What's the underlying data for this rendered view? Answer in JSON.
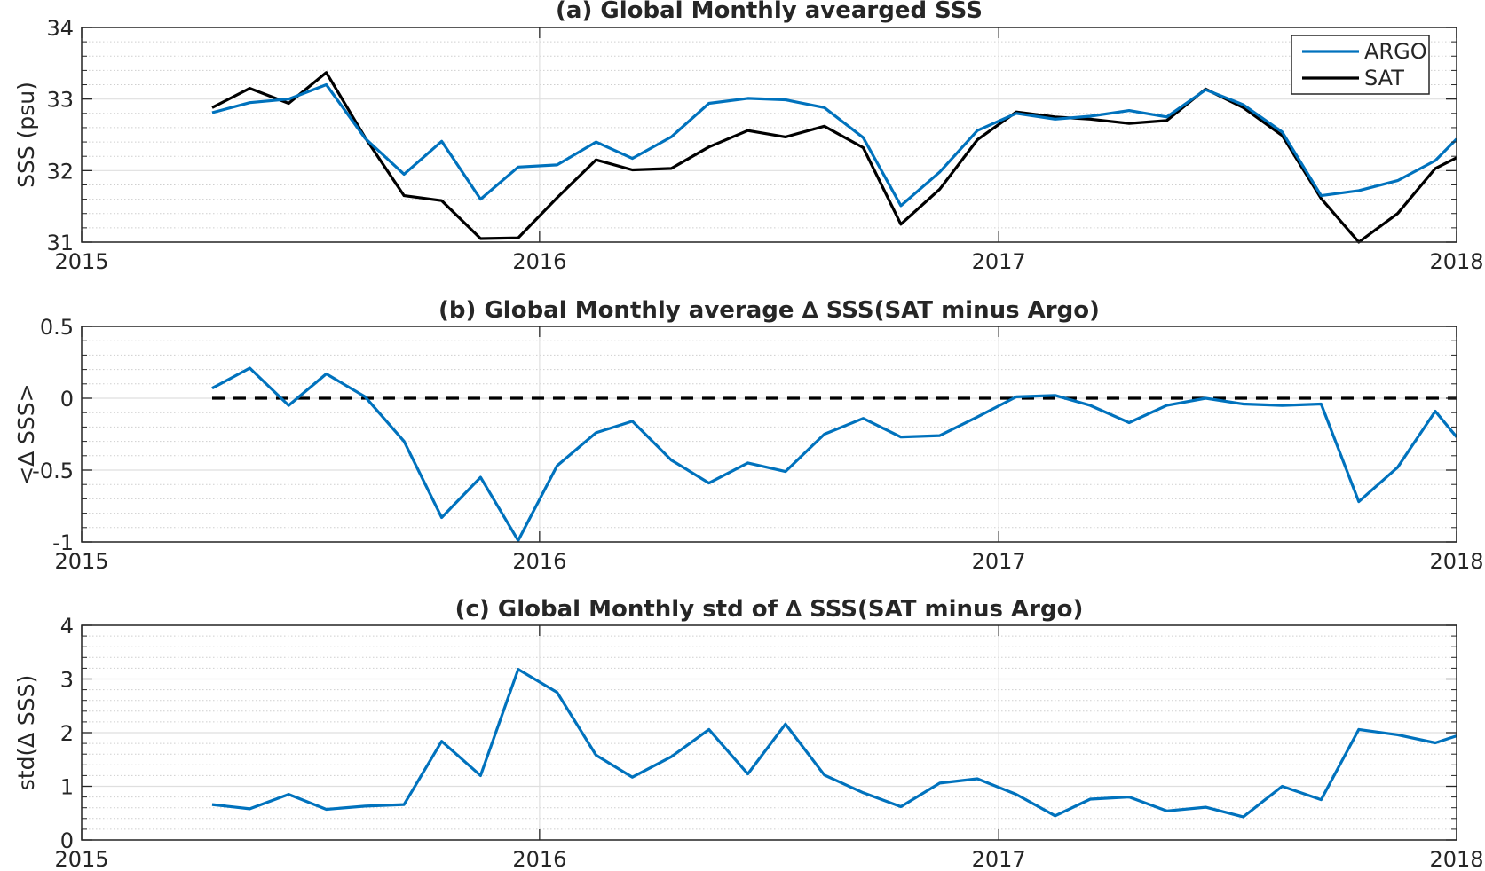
{
  "colors": {
    "argo": "#0072BD",
    "sat": "#000000",
    "axis": "#262626",
    "grid_major": "#DFDFDF",
    "grid_minor": "#CFCFCF"
  },
  "x_ticks": [
    "2015",
    "2016",
    "2017",
    "2018"
  ],
  "chart_data": [
    {
      "type": "line",
      "title": "(a) Global Monthly avearged SSS",
      "xlabel": "",
      "ylabel": "SSS (psu)",
      "xlim": [
        "2015-01-01",
        "2018-01-01"
      ],
      "ylim": [
        31,
        34
      ],
      "yticks": [
        "31",
        "32",
        "33",
        "34"
      ],
      "grid": "on",
      "legend": "top-right",
      "x": [
        "2015-04-15",
        "2015-05-15",
        "2015-06-15",
        "2015-07-15",
        "2015-08-15",
        "2015-09-15",
        "2015-10-15",
        "2015-11-15",
        "2015-12-15",
        "2016-01-15",
        "2016-02-15",
        "2016-03-15",
        "2016-04-15",
        "2016-05-15",
        "2016-06-15",
        "2016-07-15",
        "2016-08-15",
        "2016-09-15",
        "2016-10-15",
        "2016-11-15",
        "2016-12-15",
        "2017-01-15",
        "2017-02-15",
        "2017-03-15",
        "2017-04-15",
        "2017-05-15",
        "2017-06-15",
        "2017-07-15",
        "2017-08-15",
        "2017-09-15",
        "2017-10-15",
        "2017-11-15",
        "2017-12-15",
        "2018-01-01"
      ],
      "series": [
        {
          "name": "ARGO",
          "values": [
            32.81,
            32.95,
            33.0,
            33.2,
            32.45,
            31.95,
            32.41,
            31.6,
            32.05,
            32.08,
            32.4,
            32.17,
            32.47,
            32.94,
            33.01,
            32.99,
            32.88,
            32.46,
            31.51,
            31.98,
            32.56,
            32.8,
            32.72,
            32.76,
            32.84,
            32.75,
            33.13,
            32.92,
            32.54,
            31.65,
            31.72,
            31.86,
            32.14,
            32.44
          ]
        },
        {
          "name": "SAT",
          "values": [
            32.88,
            33.15,
            32.94,
            33.37,
            32.46,
            31.65,
            31.58,
            31.05,
            31.06,
            31.62,
            32.15,
            32.01,
            32.03,
            32.33,
            32.56,
            32.47,
            32.62,
            32.32,
            31.25,
            31.74,
            32.43,
            32.82,
            32.75,
            32.72,
            32.66,
            32.7,
            33.14,
            32.88,
            32.49,
            31.61,
            31.0,
            31.4,
            32.03,
            32.18
          ]
        }
      ]
    },
    {
      "type": "line",
      "title": "(b) Global Monthly average ∆ SSS(SAT minus Argo)",
      "xlabel": "",
      "ylabel": "<∆ SSS>",
      "xlim": [
        "2015-01-01",
        "2018-01-01"
      ],
      "ylim": [
        -1,
        0.5
      ],
      "yticks": [
        "-1",
        "-0.5",
        "0",
        "0.5"
      ],
      "grid": "on",
      "reference_line": 0,
      "x": [
        "2015-04-15",
        "2015-05-15",
        "2015-06-15",
        "2015-07-15",
        "2015-08-15",
        "2015-09-15",
        "2015-10-15",
        "2015-11-15",
        "2015-12-15",
        "2016-01-15",
        "2016-02-15",
        "2016-03-15",
        "2016-04-15",
        "2016-05-15",
        "2016-06-15",
        "2016-07-15",
        "2016-08-15",
        "2016-09-15",
        "2016-10-15",
        "2016-11-15",
        "2016-12-15",
        "2017-01-15",
        "2017-02-15",
        "2017-03-15",
        "2017-04-15",
        "2017-05-15",
        "2017-06-15",
        "2017-07-15",
        "2017-08-15",
        "2017-09-15",
        "2017-10-15",
        "2017-11-15",
        "2017-12-15",
        "2018-01-01"
      ],
      "series": [
        {
          "values": [
            0.07,
            0.21,
            -0.05,
            0.17,
            0.01,
            -0.3,
            -0.83,
            -0.55,
            -0.99,
            -0.47,
            -0.24,
            -0.16,
            -0.43,
            -0.59,
            -0.45,
            -0.51,
            -0.25,
            -0.14,
            -0.27,
            -0.26,
            -0.13,
            0.01,
            0.02,
            -0.05,
            -0.17,
            -0.05,
            0.0,
            -0.04,
            -0.05,
            -0.04,
            -0.72,
            -0.48,
            -0.09,
            -0.27
          ]
        }
      ]
    },
    {
      "type": "line",
      "title": "(c) Global Monthly std of ∆ SSS(SAT minus Argo)",
      "xlabel": "",
      "ylabel": "std(∆ SSS)",
      "xlim": [
        "2015-01-01",
        "2018-01-01"
      ],
      "ylim": [
        0,
        4
      ],
      "yticks": [
        "0",
        "1",
        "2",
        "3",
        "4"
      ],
      "grid": "on",
      "x": [
        "2015-04-15",
        "2015-05-15",
        "2015-06-15",
        "2015-07-15",
        "2015-08-15",
        "2015-09-15",
        "2015-10-15",
        "2015-11-15",
        "2015-12-15",
        "2016-01-15",
        "2016-02-15",
        "2016-03-15",
        "2016-04-15",
        "2016-05-15",
        "2016-06-15",
        "2016-07-15",
        "2016-08-15",
        "2016-09-15",
        "2016-10-15",
        "2016-11-15",
        "2016-12-15",
        "2017-01-15",
        "2017-02-15",
        "2017-03-15",
        "2017-04-15",
        "2017-05-15",
        "2017-06-15",
        "2017-07-15",
        "2017-08-15",
        "2017-09-15",
        "2017-10-15",
        "2017-11-15",
        "2017-12-15",
        "2018-01-01"
      ],
      "series": [
        {
          "values": [
            0.66,
            0.58,
            0.85,
            0.57,
            0.63,
            0.66,
            1.84,
            1.2,
            3.18,
            2.75,
            1.58,
            1.17,
            1.55,
            2.06,
            1.23,
            2.16,
            1.21,
            0.88,
            0.62,
            1.06,
            1.14,
            0.85,
            0.45,
            0.76,
            0.8,
            0.54,
            0.61,
            0.43,
            1.0,
            0.75,
            2.06,
            1.96,
            1.81,
            1.94
          ]
        }
      ]
    }
  ]
}
